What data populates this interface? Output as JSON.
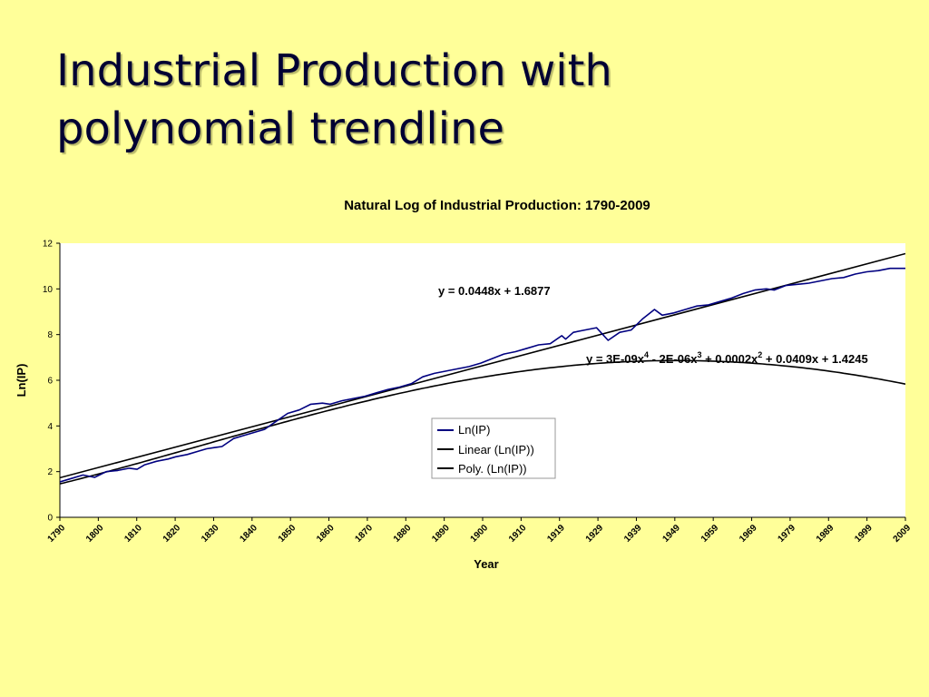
{
  "slide": {
    "title_line1": "Industrial Production with",
    "title_line2": "polynomial trendline"
  },
  "colors": {
    "background": "#FFFF99",
    "plot_area": "#FFFFFF",
    "series_line": "#000080",
    "trend_lines": "#000000"
  },
  "chart_data": {
    "type": "line",
    "title": "Natural Log of Industrial Production: 1790-2009",
    "xlabel": "Year",
    "ylabel": "Ln(IP)",
    "xlim": [
      1790,
      2009
    ],
    "ylim": [
      0,
      12
    ],
    "yticks": [
      0,
      2,
      4,
      6,
      8,
      10,
      12
    ],
    "xtick_labels": [
      "1790",
      "1800",
      "1810",
      "1820",
      "1830",
      "1840",
      "1850",
      "1860",
      "1870",
      "1880",
      "1890",
      "1900",
      "1910",
      "1919",
      "1929",
      "1939",
      "1949",
      "1959",
      "1969",
      "1979",
      "1989",
      "1999",
      "2009"
    ],
    "grid": false,
    "legend_position": "center-bottom",
    "series": [
      {
        "name": "Ln(IP)",
        "x": [
          1790,
          1793,
          1796,
          1799,
          1802,
          1805,
          1808,
          1810,
          1812,
          1815,
          1818,
          1820,
          1823,
          1826,
          1828,
          1830,
          1832,
          1835,
          1838,
          1840,
          1843,
          1846,
          1849,
          1852,
          1855,
          1858,
          1860,
          1863,
          1866,
          1869,
          1872,
          1875,
          1878,
          1881,
          1884,
          1887,
          1890,
          1893,
          1896,
          1899,
          1902,
          1905,
          1908,
          1911,
          1914,
          1917,
          1920,
          1921,
          1923,
          1926,
          1929,
          1932,
          1935,
          1938,
          1941,
          1944,
          1946,
          1949,
          1952,
          1955,
          1958,
          1961,
          1964,
          1967,
          1970,
          1973,
          1975,
          1978,
          1981,
          1984,
          1987,
          1990,
          1993,
          1996,
          1999,
          2002,
          2005,
          2009
        ],
        "y": [
          1.55,
          1.7,
          1.85,
          1.75,
          2.0,
          2.05,
          2.15,
          2.1,
          2.3,
          2.45,
          2.55,
          2.65,
          2.75,
          2.9,
          3.0,
          3.05,
          3.1,
          3.45,
          3.6,
          3.7,
          3.85,
          4.2,
          4.55,
          4.7,
          4.95,
          5.0,
          4.95,
          5.1,
          5.2,
          5.3,
          5.45,
          5.6,
          5.7,
          5.85,
          6.15,
          6.3,
          6.4,
          6.5,
          6.6,
          6.75,
          6.95,
          7.15,
          7.25,
          7.4,
          7.55,
          7.6,
          7.95,
          7.8,
          8.1,
          8.2,
          8.3,
          7.75,
          8.1,
          8.2,
          8.7,
          9.1,
          8.85,
          8.95,
          9.1,
          9.25,
          9.3,
          9.45,
          9.6,
          9.8,
          9.95,
          10.0,
          9.95,
          10.15,
          10.2,
          10.25,
          10.35,
          10.45,
          10.5,
          10.65,
          10.75,
          10.8,
          10.9,
          10.9
        ]
      },
      {
        "name": "Linear (Ln(IP))",
        "equation": "y = 0.0448x + 1.6877",
        "slope": 0.0448,
        "intercept": 1.6877
      },
      {
        "name": "Poly. (Ln(IP))",
        "equation": "y = 3E-09x4 - 2E-06x3 + 0.0002x2 + 0.0409x + 1.4245",
        "coefficients": [
          3e-09,
          -2e-06,
          0.0002,
          0.0409,
          1.4245
        ]
      }
    ],
    "annotations": {
      "linear_equation": "y = 0.0448x + 1.6877",
      "poly_eq_part1": "y = 3E-09x",
      "poly_eq_sup1": "4",
      "poly_eq_part2": " - 2E-06x",
      "poly_eq_sup2": "3",
      "poly_eq_part3": " + 0.0002x",
      "poly_eq_sup3": "2",
      "poly_eq_part4": " + 0.0409x + 1.4245"
    }
  }
}
